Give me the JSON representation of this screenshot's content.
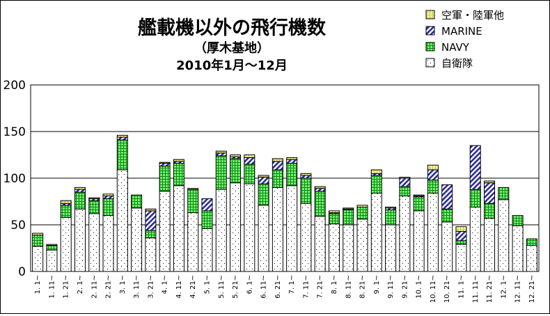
{
  "chart_data": {
    "type": "bar",
    "stacked": true,
    "title": "艦載機以外の飛行機数",
    "subtitle": "（厚木基地）",
    "period": "2010年1月～12月",
    "ylim": [
      0,
      200
    ],
    "yticks": [
      0,
      50,
      100,
      150,
      200
    ],
    "grid": true,
    "legend_position": "top-right",
    "categories": [
      "1. 1~",
      "1. 11~",
      "1. 21~",
      "2. 1~",
      "2. 11~",
      "2. 21~",
      "3. 1~",
      "3. 11~",
      "3. 21~",
      "4. 1~",
      "4. 11~",
      "4. 21~",
      "5. 1~",
      "5. 11~",
      "5. 21~",
      "6. 1~",
      "6. 11~",
      "6. 21~",
      "7. 1~",
      "7. 11~",
      "7. 21~",
      "8. 1~",
      "8. 11~",
      "8. 21~",
      "9. 1~",
      "9. 11~",
      "9. 21~",
      "10. 1~",
      "10. 11~",
      "10. 21~",
      "11. 1~",
      "11. 11~",
      "11. 21~",
      "12. 1~",
      "12. 11~",
      "12. 21~"
    ],
    "series": [
      {
        "name": "自衛隊",
        "color": "#ffffff",
        "pattern": "dots",
        "values": [
          27,
          23,
          58,
          67,
          62,
          60,
          109,
          68,
          36,
          86,
          92,
          63,
          46,
          88,
          95,
          94,
          71,
          90,
          92,
          73,
          59,
          51,
          50,
          56,
          84,
          50,
          81,
          65,
          84,
          53,
          29,
          69,
          57,
          77,
          49,
          28
        ]
      },
      {
        "name": "NAVY",
        "color": "#66ff66",
        "pattern": "grid",
        "values": [
          12,
          5,
          13,
          18,
          14,
          18,
          32,
          14,
          8,
          27,
          24,
          25,
          19,
          36,
          26,
          21,
          23,
          19,
          24,
          27,
          27,
          11,
          16,
          13,
          19,
          16,
          10,
          15,
          14,
          14,
          4,
          19,
          16,
          13,
          11,
          7
        ]
      },
      {
        "name": "MARINE",
        "color": "#3333aa",
        "pattern": "hatch",
        "values": [
          0,
          0,
          2,
          3,
          2,
          3,
          3,
          0,
          21,
          3,
          2,
          0,
          13,
          3,
          2,
          7,
          7,
          9,
          4,
          3,
          3,
          1,
          1,
          0,
          2,
          2,
          9,
          1,
          11,
          26,
          10,
          47,
          22,
          0,
          0,
          0
        ]
      },
      {
        "name": "空軍・陸軍他",
        "color": "#ffff99",
        "pattern": "grid",
        "values": [
          2,
          1,
          3,
          2,
          1,
          2,
          2,
          0,
          2,
          1,
          2,
          1,
          0,
          2,
          2,
          3,
          2,
          3,
          2,
          2,
          2,
          2,
          1,
          2,
          4,
          1,
          1,
          1,
          5,
          0,
          5,
          0,
          2,
          0,
          0,
          0
        ]
      }
    ]
  }
}
